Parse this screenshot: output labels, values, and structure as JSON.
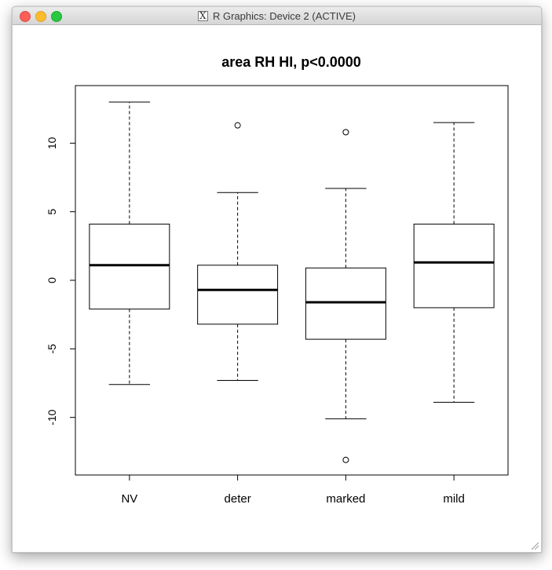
{
  "window": {
    "title": "R Graphics: Device 2 (ACTIVE)"
  },
  "chart_data": {
    "type": "boxplot",
    "title": "area RH HI, p<0.0000",
    "xlabel": "",
    "ylabel": "",
    "ylim": [
      -14.2,
      14.2
    ],
    "yticks": [
      -10,
      -5,
      0,
      5,
      10
    ],
    "grid": false,
    "categories": [
      "NV",
      "deter",
      "marked",
      "mild"
    ],
    "boxes": [
      {
        "name": "NV",
        "whisker_low": -7.6,
        "q1": -2.1,
        "median": 1.1,
        "q3": 4.1,
        "whisker_high": 13.0,
        "outliers": []
      },
      {
        "name": "deter",
        "whisker_low": -7.3,
        "q1": -3.2,
        "median": -0.7,
        "q3": 1.1,
        "whisker_high": 6.4,
        "outliers": [
          11.3
        ]
      },
      {
        "name": "marked",
        "whisker_low": -10.1,
        "q1": -4.3,
        "median": -1.6,
        "q3": 0.9,
        "whisker_high": 6.7,
        "outliers": [
          10.8,
          -13.1
        ]
      },
      {
        "name": "mild",
        "whisker_low": -8.9,
        "q1": -2.0,
        "median": 1.3,
        "q3": 4.1,
        "whisker_high": 11.5,
        "outliers": []
      }
    ]
  }
}
